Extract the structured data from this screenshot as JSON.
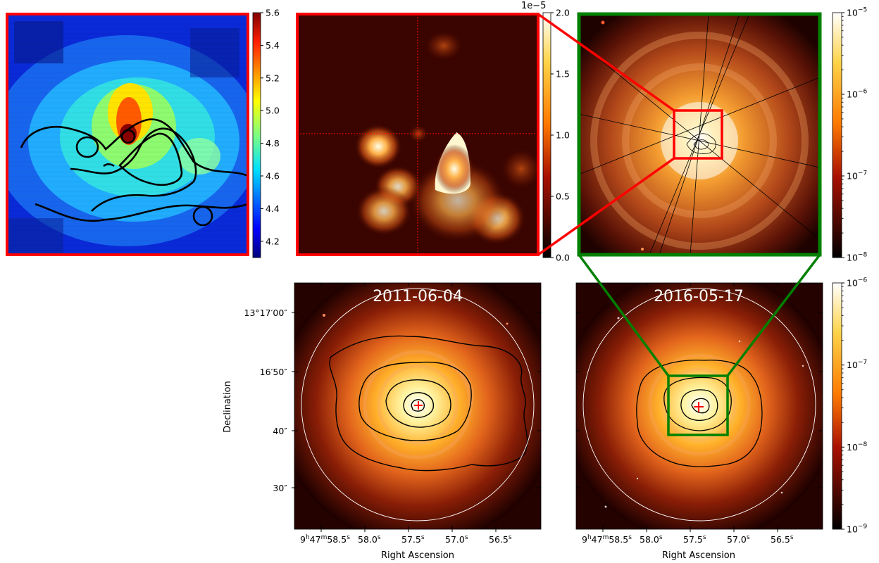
{
  "chart_data": [
    {
      "type": "heatmap",
      "name": "zoom-velocity-panel",
      "description": "Colour-mapped zoom of central region with black contours",
      "colormap": "jet",
      "colorbar": {
        "vmin": 4.1,
        "vmax": 5.6,
        "ticks": [
          4.2,
          4.4,
          4.6,
          4.8,
          5.0,
          5.2,
          5.4,
          5.6
        ],
        "labels": [
          "4.2",
          "4.4",
          "4.6",
          "4.8",
          "5.0",
          "5.2",
          "5.4",
          "5.6"
        ]
      },
      "frame_color": "#ff0000"
    },
    {
      "type": "heatmap",
      "name": "zoom-model-panel",
      "colormap": "afmhot",
      "colorbar": {
        "vmin": 0.0,
        "vmax": 2.0,
        "ticks": [
          0.0,
          0.5,
          1.0,
          1.5,
          2.0
        ],
        "labels": [
          "0.0",
          "0.5",
          "1.0",
          "1.5",
          "2.0"
        ],
        "offset_label": "1e−5"
      },
      "frame_color": "#ff0000"
    },
    {
      "type": "heatmap",
      "name": "zoom-2016-panel",
      "colormap": "afmhot (log)",
      "colorbar": {
        "vmin": 1e-08,
        "vmax": 1e-05,
        "log": true,
        "labels": [
          [
            "10",
            "−8"
          ],
          [
            "10",
            "−7"
          ],
          [
            "10",
            "−6"
          ],
          [
            "10",
            "−5"
          ]
        ]
      },
      "frame_color": "#008000"
    },
    {
      "type": "heatmap",
      "name": "epoch-2011-panel",
      "title": "2011-06-04",
      "colormap": "afmhot (log)",
      "xlabel": "Right Ascension",
      "ylabel": "Declination",
      "x_ticks": [
        "58.5",
        "58.0",
        "57.5",
        "57.0",
        "56.5"
      ],
      "y_ticks": [
        "13°17′00″",
        "16′50″",
        "40″",
        "30″"
      ]
    },
    {
      "type": "heatmap",
      "name": "epoch-2016-panel",
      "title": "2016-05-17",
      "colormap": "afmhot (log)",
      "xlabel": "Right Ascension",
      "x_ticks": [
        "58.5",
        "58.0",
        "57.5",
        "57.0",
        "56.5"
      ],
      "colorbar": {
        "vmin": 1e-09,
        "vmax": 1e-06,
        "log": true,
        "labels": [
          [
            "10",
            "−9"
          ],
          [
            "10",
            "−8"
          ],
          [
            "10",
            "−7"
          ],
          [
            "10",
            "−6"
          ]
        ]
      }
    }
  ],
  "labels": {
    "title_2011": "2011-06-04",
    "title_2016": "2016-05-17",
    "xlabel": "Right Ascension",
    "ylabel": "Declination",
    "y_tick_1": "13°17′00″",
    "y_tick_2": "16′50″",
    "y_tick_3": "40″",
    "y_tick_4": "30″",
    "ra_first_hours": "9",
    "ra_first_minutes": "47",
    "ra_first_seconds": "58.5",
    "ra_tick_2": "58.0",
    "ra_tick_3": "57.5",
    "ra_tick_4": "57.0",
    "ra_tick_5": "56.5",
    "unit_h": "h",
    "unit_m": "m",
    "unit_s": "s",
    "offset_label": "1e−5"
  },
  "colors": {
    "red_frame": "#ff0000",
    "green_frame": "#008000"
  }
}
